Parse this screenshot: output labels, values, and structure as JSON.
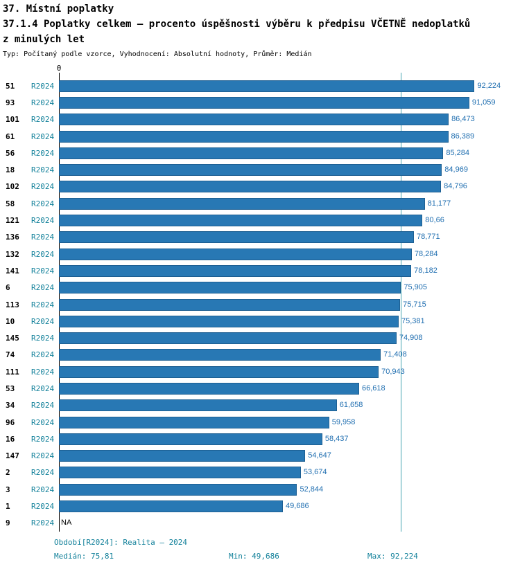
{
  "header": {
    "line1": "37. Místní poplatky",
    "line2": "37.1.4 Poplatky celkem – procento úspěšnosti výběru k předpisu VČETNĚ nedoplatků",
    "line3": "z minulých let",
    "meta": "Typ: Počítaný podle vzorce, Vyhodnocení: Absolutní hodnoty, Průměr: Medián"
  },
  "chart_data": {
    "type": "bar",
    "orientation": "horizontal",
    "title": "37.1.4 Poplatky celkem – procento úspěšnosti výběru k předpisu VČETNĚ nedoplatků z minulých let",
    "xlabel": "",
    "ylabel": "",
    "xlim": [
      0,
      100
    ],
    "x_origin_label": "0",
    "median": 75.81,
    "series_name": "R2024",
    "rows": [
      {
        "id": "51",
        "period": "R2024",
        "value": 92.224,
        "value_label": "92,224"
      },
      {
        "id": "93",
        "period": "R2024",
        "value": 91.059,
        "value_label": "91,059"
      },
      {
        "id": "101",
        "period": "R2024",
        "value": 86.473,
        "value_label": "86,473"
      },
      {
        "id": "61",
        "period": "R2024",
        "value": 86.389,
        "value_label": "86,389"
      },
      {
        "id": "56",
        "period": "R2024",
        "value": 85.284,
        "value_label": "85,284"
      },
      {
        "id": "18",
        "period": "R2024",
        "value": 84.969,
        "value_label": "84,969"
      },
      {
        "id": "102",
        "period": "R2024",
        "value": 84.796,
        "value_label": "84,796"
      },
      {
        "id": "58",
        "period": "R2024",
        "value": 81.177,
        "value_label": "81,177"
      },
      {
        "id": "121",
        "period": "R2024",
        "value": 80.66,
        "value_label": "80,66"
      },
      {
        "id": "136",
        "period": "R2024",
        "value": 78.771,
        "value_label": "78,771"
      },
      {
        "id": "132",
        "period": "R2024",
        "value": 78.284,
        "value_label": "78,284"
      },
      {
        "id": "141",
        "period": "R2024",
        "value": 78.182,
        "value_label": "78,182"
      },
      {
        "id": "6",
        "period": "R2024",
        "value": 75.905,
        "value_label": "75,905"
      },
      {
        "id": "113",
        "period": "R2024",
        "value": 75.715,
        "value_label": "75,715"
      },
      {
        "id": "10",
        "period": "R2024",
        "value": 75.381,
        "value_label": "75,381"
      },
      {
        "id": "145",
        "period": "R2024",
        "value": 74.908,
        "value_label": "74,908"
      },
      {
        "id": "74",
        "period": "R2024",
        "value": 71.408,
        "value_label": "71,408"
      },
      {
        "id": "111",
        "period": "R2024",
        "value": 70.943,
        "value_label": "70,943"
      },
      {
        "id": "53",
        "period": "R2024",
        "value": 66.618,
        "value_label": "66,618"
      },
      {
        "id": "34",
        "period": "R2024",
        "value": 61.658,
        "value_label": "61,658"
      },
      {
        "id": "96",
        "period": "R2024",
        "value": 59.958,
        "value_label": "59,958"
      },
      {
        "id": "16",
        "period": "R2024",
        "value": 58.437,
        "value_label": "58,437"
      },
      {
        "id": "147",
        "period": "R2024",
        "value": 54.647,
        "value_label": "54,647"
      },
      {
        "id": "2",
        "period": "R2024",
        "value": 53.674,
        "value_label": "53,674"
      },
      {
        "id": "3",
        "period": "R2024",
        "value": 52.844,
        "value_label": "52,844"
      },
      {
        "id": "1",
        "period": "R2024",
        "value": 49.686,
        "value_label": "49,686"
      },
      {
        "id": "9",
        "period": "R2024",
        "value": null,
        "value_label": "NA"
      }
    ],
    "legend": "none",
    "grid": false
  },
  "footer": {
    "period": "Období[R2024]: Realita – 2024",
    "median": "Medián: 75,81",
    "min": "Min: 49,686",
    "max": "Max: 92,224"
  },
  "theme": {
    "bar_fill": "#2878b4",
    "bar_border": "#1d5f92",
    "value_color": "#1f6eb0",
    "period_color": "#0f7f99",
    "median_line_color": "#43a2b0",
    "footer_color": "#0f7f99",
    "axis_color": "#000000"
  }
}
